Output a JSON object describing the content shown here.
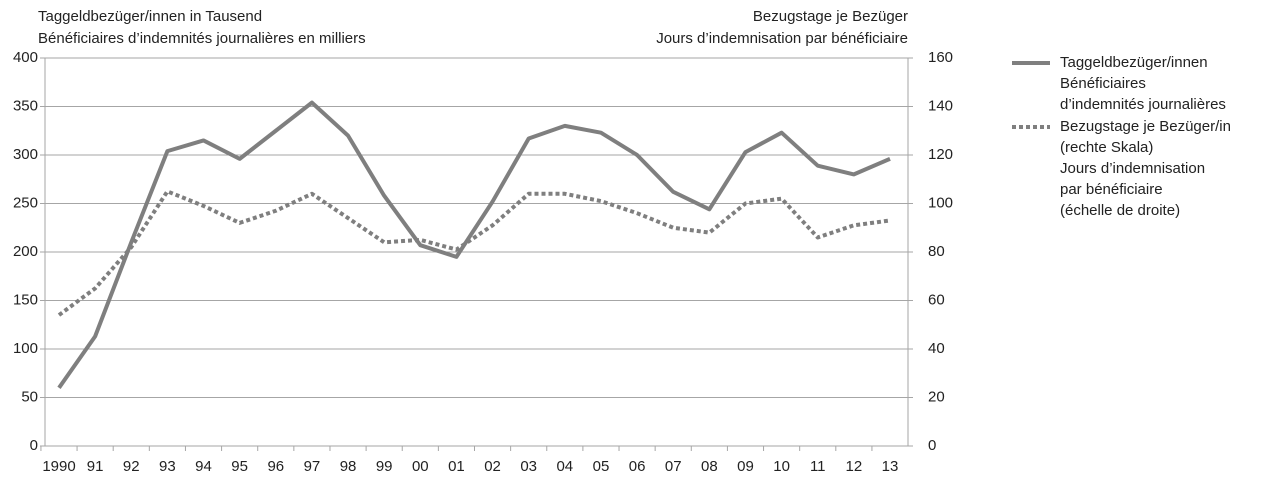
{
  "chart_data": {
    "type": "line",
    "y_label": [
      "Taggeldbezüger/innen in Tausend",
      "Bénéficiaires d’indemnités journalières en milliers"
    ],
    "y2_label": [
      "Bezugstage je Bezüger",
      "Jours d’indemnisation par bénéficiaire"
    ],
    "categories": [
      "1990",
      "91",
      "92",
      "93",
      "94",
      "95",
      "96",
      "97",
      "98",
      "99",
      "00",
      "01",
      "02",
      "03",
      "04",
      "05",
      "06",
      "07",
      "08",
      "09",
      "10",
      "11",
      "12",
      "13"
    ],
    "series": [
      {
        "name": [
          "Taggeldbezüger/innen",
          "Bénéficiaires",
          "d’indemnités journalières"
        ],
        "color": "#7f7f7f",
        "style": "solid",
        "values": [
          60,
          113,
          210,
          304,
          315,
          296,
          325,
          354,
          320,
          258,
          207,
          195,
          252,
          317,
          330,
          323,
          300,
          262,
          244,
          303,
          323,
          289,
          280,
          296
        ]
      },
      {
        "name": [
          "Bezugstage je Bezüger/in",
          "(rechte Skala)",
          "Jours d’indemnisation",
          "par bénéficiaire",
          "(échelle de droite)"
        ],
        "color": "#7f7f7f",
        "style": "dotted",
        "axis": "y2",
        "values": [
          54,
          65,
          82,
          105,
          99,
          92,
          97,
          104,
          94,
          84,
          85,
          81,
          91,
          104,
          104,
          101,
          96,
          90,
          88,
          100,
          102,
          86,
          91,
          93
        ]
      }
    ],
    "ylim": [
      0,
      400
    ],
    "yticks": [
      0,
      50,
      100,
      150,
      200,
      250,
      300,
      350,
      400
    ],
    "y2lim": [
      0,
      160
    ],
    "y2ticks": [
      0,
      20,
      40,
      60,
      80,
      100,
      120,
      140,
      160
    ],
    "grid": true,
    "legend": "right"
  }
}
